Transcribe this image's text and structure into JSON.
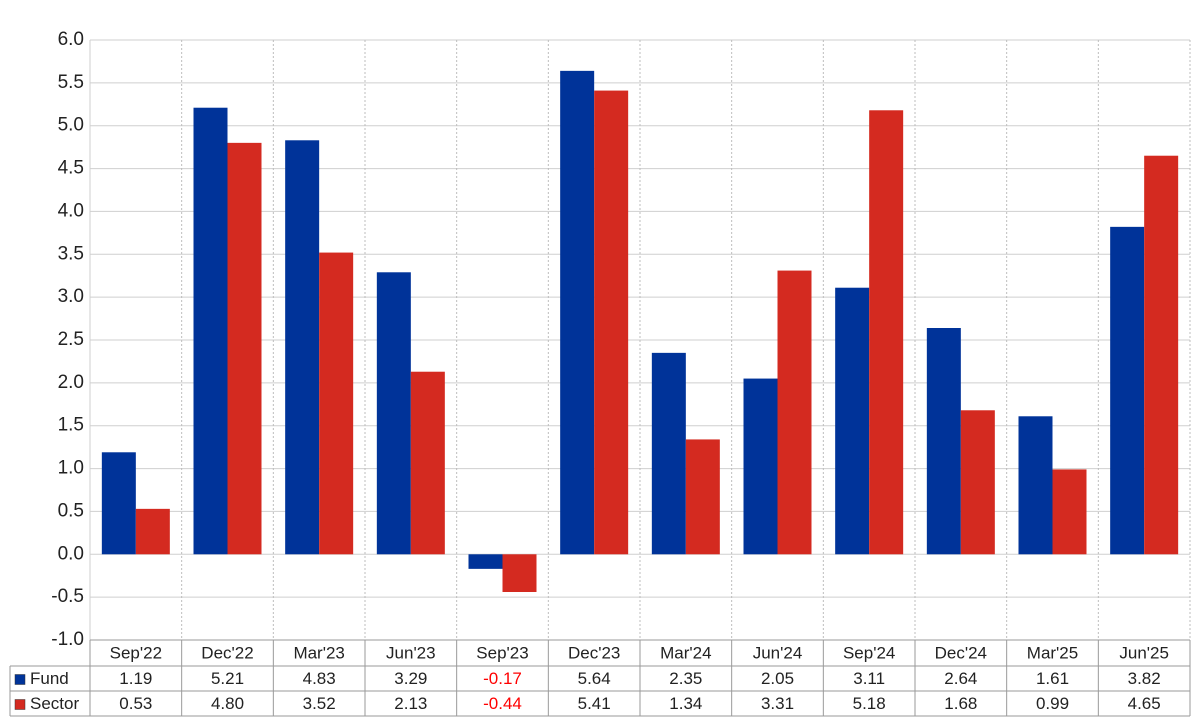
{
  "chart_data": {
    "type": "bar",
    "categories": [
      "Sep'22",
      "Dec'22",
      "Mar'23",
      "Jun'23",
      "Sep'23",
      "Dec'23",
      "Mar'24",
      "Jun'24",
      "Sep'24",
      "Dec'24",
      "Mar'25",
      "Jun'25"
    ],
    "series": [
      {
        "name": "Fund",
        "color": "#003399",
        "values": [
          1.19,
          5.21,
          4.83,
          3.29,
          -0.17,
          5.64,
          2.35,
          2.05,
          3.11,
          2.64,
          1.61,
          3.82
        ],
        "value_labels": [
          "1.19",
          "5.21",
          "4.83",
          "3.29",
          "-0.17",
          "5.64",
          "2.35",
          "2.05",
          "3.11",
          "2.64",
          "1.61",
          "3.82"
        ]
      },
      {
        "name": "Sector",
        "color": "#d42a20",
        "values": [
          0.53,
          4.8,
          3.52,
          2.13,
          -0.44,
          5.41,
          1.34,
          3.31,
          5.18,
          1.68,
          0.99,
          4.65
        ],
        "value_labels": [
          "0.53",
          "4.80",
          "3.52",
          "2.13",
          "-0.44",
          "5.41",
          "1.34",
          "3.31",
          "5.18",
          "1.68",
          "0.99",
          "4.65"
        ]
      }
    ],
    "ylim": [
      -1.0,
      6.0
    ],
    "yticks": [
      {
        "value": -1.0,
        "label": "-1.0"
      },
      -0.5,
      {
        "value": 0.0,
        "label": "0.0"
      },
      0.5,
      {
        "value": 1.0,
        "label": "1.0"
      },
      1.5,
      {
        "value": 2.0,
        "label": "2.0"
      },
      2.5,
      {
        "value": 3.0,
        "label": "3.0"
      },
      3.5,
      {
        "value": 4.0,
        "label": "4.0"
      },
      4.5,
      {
        "value": 5.0,
        "label": "5.0"
      },
      5.5,
      {
        "value": 6.0,
        "label": "6.0"
      }
    ],
    "grid": true,
    "negative_label_color": "#ff0000"
  }
}
